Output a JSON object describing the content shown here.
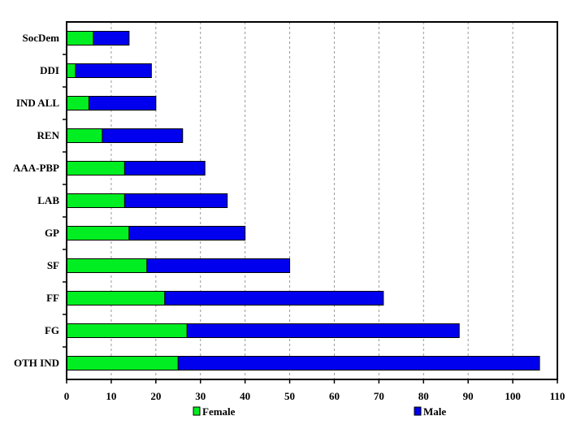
{
  "chart_data": {
    "type": "bar",
    "orientation": "horizontal",
    "stacked": true,
    "title": "",
    "xlabel": "",
    "ylabel": "",
    "categories": [
      "SocDem",
      "DDI",
      "IND ALL",
      "REN",
      "AAA-PBP",
      "LAB",
      "GP",
      "SF",
      "FF",
      "FG",
      "OTH IND"
    ],
    "series": [
      {
        "name": "Female",
        "color": "#00ee22",
        "values": [
          6,
          2,
          5,
          8,
          13,
          13,
          14,
          18,
          22,
          27,
          25
        ]
      },
      {
        "name": "Male",
        "color": "#0000ee",
        "values": [
          8,
          17,
          15,
          18,
          18,
          23,
          26,
          32,
          49,
          61,
          81
        ]
      }
    ],
    "xlim": [
      0,
      110
    ],
    "xticks": [
      0,
      10,
      20,
      30,
      40,
      50,
      60,
      70,
      80,
      90,
      100,
      110
    ],
    "grid": "vertical-dashed",
    "legend": "bottom"
  }
}
